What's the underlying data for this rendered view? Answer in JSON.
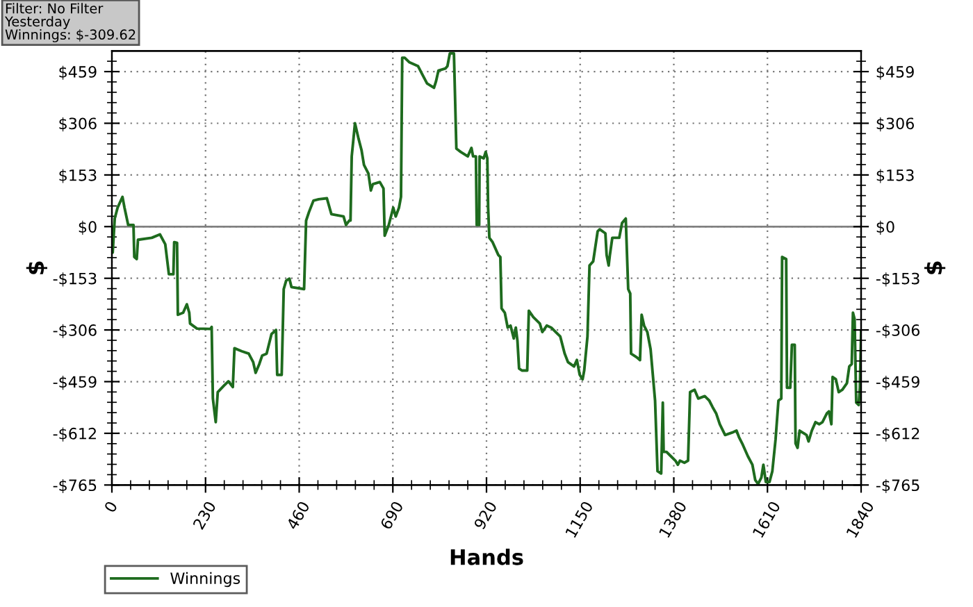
{
  "chart_data": {
    "type": "line",
    "xlabel": "Hands",
    "ylabel": "$",
    "y2label": "$",
    "annotations": [
      "Filter: No Filter",
      "Yesterday",
      "Winnings: $-309.62"
    ],
    "xlim": [
      0,
      1840
    ],
    "xticks": [
      0,
      230,
      460,
      690,
      920,
      1150,
      1380,
      1610,
      1840
    ],
    "ylim": [
      -765,
      520
    ],
    "yticks": [
      {
        "value": -765,
        "label": "-$765"
      },
      {
        "value": -612,
        "label": "-$612"
      },
      {
        "value": -459,
        "label": "-$459"
      },
      {
        "value": -306,
        "label": "-$306"
      },
      {
        "value": -153,
        "label": "-$153"
      },
      {
        "value": 0,
        "label": "$0"
      },
      {
        "value": 153,
        "label": "$153"
      },
      {
        "value": 306,
        "label": "$306"
      },
      {
        "value": 459,
        "label": "$459"
      }
    ],
    "y2lim": [
      -765,
      520
    ],
    "y2ticks": [
      {
        "value": -765,
        "label": "-$765"
      },
      {
        "value": -612,
        "label": "-$612"
      },
      {
        "value": -459,
        "label": "-$459"
      },
      {
        "value": -306,
        "label": "-$306"
      },
      {
        "value": -153,
        "label": "-$153"
      },
      {
        "value": 0,
        "label": "$0"
      },
      {
        "value": 153,
        "label": "$153"
      },
      {
        "value": 306,
        "label": "$306"
      },
      {
        "value": 459,
        "label": "$459"
      }
    ],
    "grid": true,
    "legend": "bottom left",
    "marker": "none",
    "line_style": "solid",
    "ref_lines": [
      {
        "axis": "y",
        "value": 0,
        "color": "#808080"
      }
    ],
    "series": [
      {
        "name": "Winnings",
        "color": "#1e6b1e",
        "x": [
          0,
          2,
          7,
          14,
          26,
          31,
          40,
          53,
          55,
          61,
          64,
          98,
          118,
          131,
          140,
          151,
          153,
          160,
          162,
          175,
          184,
          190,
          192,
          209,
          242,
          245,
          248,
          255,
          260,
          275,
          286,
          297,
          301,
          319,
          336,
          347,
          353,
          362,
          369,
          380,
          392,
          403,
          406,
          417,
          422,
          428,
          436,
          441,
          472,
          477,
          484,
          495,
          508,
          528,
          539,
          569,
          575,
          583,
          586,
          589,
          597,
          606,
          613,
          619,
          630,
          636,
          641,
          658,
          667,
          670,
          680,
          691,
          697,
          705,
          710,
          713,
          719,
          730,
          752,
          763,
          774,
          791,
          796,
          802,
          819,
          824,
          830,
          840,
          846,
          857,
          874,
          883,
          887,
          894,
          896,
          902,
          903,
          913,
          918,
          922,
          924,
          927,
          935,
          949,
          954,
          957,
          965,
          972,
          979,
          987,
          992,
          996,
          1000,
          1007,
          1020,
          1024,
          1035,
          1051,
          1057,
          1068,
          1079,
          1090,
          1101,
          1112,
          1120,
          1135,
          1142,
          1149,
          1156,
          1160,
          1168,
          1173,
          1182,
          1193,
          1198,
          1212,
          1215,
          1220,
          1223,
          1229,
          1246,
          1253,
          1262,
          1268,
          1273,
          1275,
          1290,
          1297,
          1301,
          1307,
          1315,
          1323,
          1334,
          1340,
          1349,
          1353,
          1355,
          1362,
          1373,
          1384,
          1390,
          1395,
          1406,
          1415,
          1420,
          1431,
          1440,
          1456,
          1467,
          1475,
          1484,
          1493,
          1506,
          1523,
          1534,
          1540,
          1548,
          1562,
          1573,
          1580,
          1587,
          1595,
          1600,
          1606,
          1615,
          1622,
          1630,
          1637,
          1644,
          1646,
          1656,
          1658,
          1666,
          1670,
          1677,
          1679,
          1684,
          1689,
          1706,
          1711,
          1719,
          1728,
          1737,
          1745,
          1756,
          1761,
          1767,
          1770,
          1778,
          1785,
          1794,
          1805,
          1811,
          1817,
          1820,
          1824,
          1828,
          1834,
          1837,
          1840
        ],
        "values": [
          -1,
          -77,
          24,
          56,
          88,
          56,
          5,
          5,
          -90,
          -96,
          -39,
          -33,
          -23,
          -52,
          -141,
          -141,
          -46,
          -48,
          -261,
          -255,
          -230,
          -255,
          -287,
          -302,
          -303,
          -297,
          -509,
          -579,
          -490,
          -471,
          -458,
          -475,
          -360,
          -369,
          -376,
          -401,
          -433,
          -407,
          -382,
          -376,
          -318,
          -306,
          -439,
          -439,
          -185,
          -160,
          -154,
          -179,
          -185,
          18,
          43,
          77,
          81,
          84,
          37,
          30,
          5,
          18,
          18,
          208,
          306,
          259,
          227,
          183,
          157,
          107,
          126,
          132,
          113,
          -27,
          5,
          56,
          30,
          56,
          88,
          500,
          500,
          487,
          475,
          449,
          424,
          411,
          430,
          462,
          468,
          475,
          513,
          513,
          231,
          221,
          208,
          233,
          208,
          208,
          5,
          5,
          208,
          202,
          221,
          202,
          56,
          -33,
          -46,
          -84,
          -90,
          -242,
          -255,
          -299,
          -293,
          -331,
          -299,
          -338,
          -420,
          -426,
          -426,
          -249,
          -268,
          -287,
          -312,
          -293,
          -299,
          -312,
          -325,
          -376,
          -401,
          -414,
          -395,
          -439,
          -452,
          -426,
          -325,
          -115,
          -103,
          -14,
          -8,
          -20,
          -84,
          -115,
          -84,
          -33,
          -33,
          11,
          24,
          -185,
          -198,
          -376,
          -388,
          -395,
          -261,
          -293,
          -312,
          -363,
          -515,
          -724,
          -731,
          -521,
          -667,
          -667,
          -680,
          -693,
          -705,
          -693,
          -699,
          -693,
          -490,
          -483,
          -509,
          -502,
          -515,
          -534,
          -553,
          -585,
          -617,
          -610,
          -604,
          -623,
          -642,
          -680,
          -705,
          -750,
          -762,
          -743,
          -705,
          -756,
          -756,
          -724,
          -629,
          -515,
          -509,
          -90,
          -96,
          -477,
          -477,
          -350,
          -350,
          -642,
          -655,
          -604,
          -617,
          -636,
          -604,
          -579,
          -585,
          -579,
          -553,
          -547,
          -585,
          -445,
          -452,
          -490,
          -483,
          -464,
          -414,
          -407,
          -255,
          -274,
          -521,
          -528,
          -477,
          -310
        ]
      }
    ]
  }
}
